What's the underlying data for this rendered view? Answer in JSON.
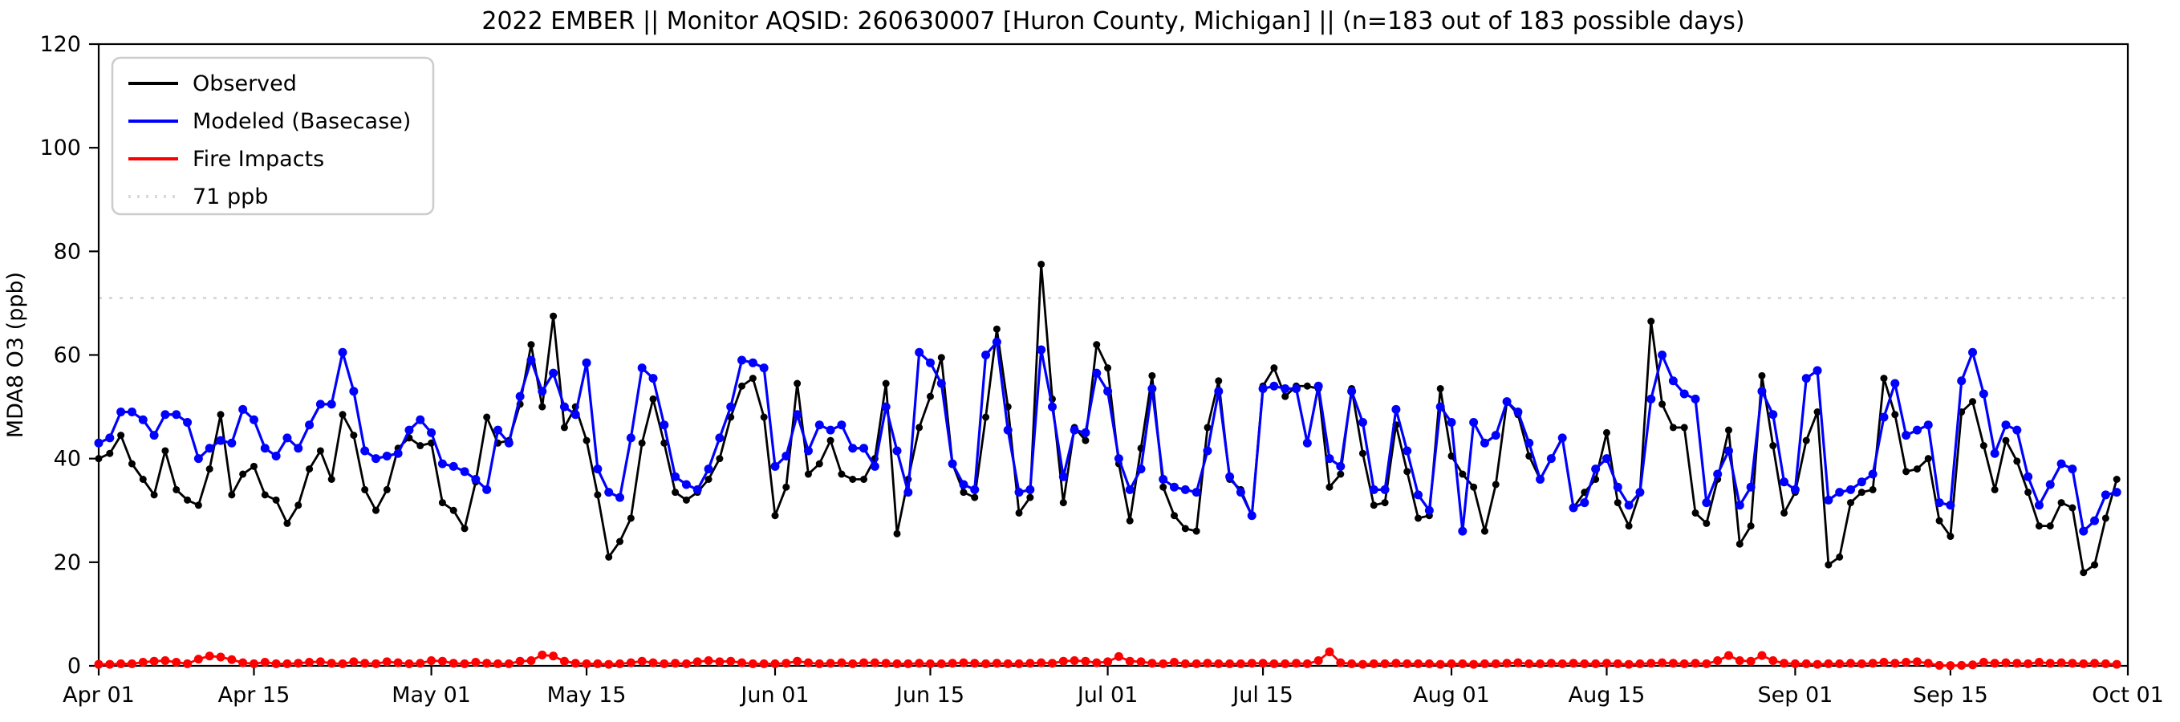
{
  "title": "2022 EMBER || Monitor AQSID: 260630007 [Huron County, Michigan] || (n=183 out of 183 possible days)",
  "ylabel": "MDA8 O3 (ppb)",
  "legend": {
    "items": [
      {
        "label": "Observed",
        "color": "#000000",
        "style": "solid"
      },
      {
        "label": "Modeled (Basecase)",
        "color": "#0000ff",
        "style": "solid"
      },
      {
        "label": "Fire Impacts",
        "color": "#ff0000",
        "style": "solid"
      },
      {
        "label": "71 ppb",
        "color": "#d9d9d9",
        "style": "dotted"
      }
    ]
  },
  "chart_data": {
    "type": "line",
    "title": "2022 EMBER || Monitor AQSID: 260630007 [Huron County, Michigan] || (n=183 out of 183 possible days)",
    "xlabel": "",
    "ylabel": "MDA8 O3 (ppb)",
    "ylim": [
      0,
      120
    ],
    "yticks": [
      0,
      20,
      40,
      60,
      80,
      100,
      120
    ],
    "x_start_date": "Apr 01",
    "x_end_date": "Oct 01",
    "n_days": 183,
    "grid": false,
    "legend_position": "upper-left",
    "ref_line": {
      "value": 71,
      "label": "71 ppb",
      "color": "#d9d9d9",
      "style": "dotted"
    },
    "x_ticks": [
      {
        "day": 0,
        "label": "Apr 01"
      },
      {
        "day": 14,
        "label": "Apr 15"
      },
      {
        "day": 30,
        "label": "May 01"
      },
      {
        "day": 44,
        "label": "May 15"
      },
      {
        "day": 61,
        "label": "Jun 01"
      },
      {
        "day": 75,
        "label": "Jun 15"
      },
      {
        "day": 91,
        "label": "Jul 01"
      },
      {
        "day": 105,
        "label": "Jul 15"
      },
      {
        "day": 122,
        "label": "Aug 01"
      },
      {
        "day": 136,
        "label": "Aug 15"
      },
      {
        "day": 153,
        "label": "Sep 01"
      },
      {
        "day": 167,
        "label": "Sep 15"
      },
      {
        "day": 183,
        "label": "Oct 01"
      }
    ],
    "series": [
      {
        "name": "Observed",
        "color": "#000000",
        "marker_radius": 4.5,
        "line_width": 2.8,
        "values": [
          40,
          41,
          44.5,
          39,
          36,
          33,
          41.5,
          34,
          32,
          31,
          38,
          48.5,
          33,
          37,
          38.5,
          33,
          32,
          27.5,
          31,
          38,
          41.5,
          36,
          48.5,
          44.5,
          34,
          30,
          34,
          42,
          44,
          42.5,
          43,
          31.5,
          30,
          26.5,
          35.5,
          48,
          43,
          43.5,
          50.5,
          62,
          50,
          67.5,
          46,
          50,
          43.5,
          33,
          21,
          24,
          28.5,
          43,
          51.5,
          43,
          33.5,
          32,
          33.5,
          36,
          40,
          48,
          54,
          55.5,
          48,
          29,
          34.5,
          54.5,
          37,
          39,
          43.5,
          37,
          36,
          36,
          40,
          54.5,
          25.5,
          36,
          46,
          52,
          59.5,
          39,
          33.5,
          32.5,
          48,
          65,
          50,
          29.5,
          32.5,
          77.5,
          51.5,
          31.5,
          46,
          43.5,
          62,
          57.5,
          39,
          28,
          42,
          56,
          34.5,
          29,
          26.5,
          26,
          46,
          55,
          36,
          34,
          29,
          54,
          57.5,
          52,
          54,
          54,
          53.5,
          34.5,
          37,
          53.5,
          41,
          31,
          31.5,
          46.5,
          37.5,
          28.5,
          29,
          53.5,
          40.5,
          37,
          34.5,
          26,
          35,
          51,
          48.5,
          40.5,
          36,
          40,
          44,
          30.5,
          33.5,
          36,
          45,
          31.5,
          27,
          33.5,
          66.5,
          50.5,
          46,
          46,
          29.5,
          27.5,
          36,
          45.5,
          23.5,
          27,
          56,
          42.5,
          29.5,
          33.5,
          43.5,
          49,
          19.5,
          21,
          31.5,
          33.5,
          34,
          55.5,
          48.5,
          37.5,
          38,
          40,
          28,
          25,
          49,
          51,
          42.5,
          34,
          43.5,
          39.5,
          33.5,
          27,
          27,
          31.5,
          30.5,
          18,
          19.5,
          28.5,
          36
        ]
      },
      {
        "name": "Modeled (Basecase)",
        "color": "#0000ff",
        "marker_radius": 5.5,
        "line_width": 3.2,
        "values": [
          43,
          44,
          49,
          49,
          47.5,
          44.5,
          48.5,
          48.5,
          47,
          40,
          42,
          43.5,
          43,
          49.5,
          47.5,
          42,
          40.5,
          44,
          42,
          46.5,
          50.5,
          50.5,
          60.5,
          53,
          41.5,
          40,
          40.5,
          41,
          45.5,
          47.5,
          45,
          39,
          38.5,
          37.5,
          36,
          34,
          45.5,
          43,
          52,
          59,
          53,
          56.5,
          50,
          48.5,
          58.5,
          38,
          33.5,
          32.5,
          44,
          57.5,
          55.5,
          46.5,
          36.5,
          35,
          34,
          38,
          44,
          50,
          59,
          58.5,
          57.5,
          38.5,
          40.5,
          48.5,
          41.5,
          46.5,
          45.5,
          46.5,
          42,
          42,
          38.5,
          50,
          41.5,
          33.5,
          60.5,
          58.5,
          54.5,
          39,
          35,
          34,
          60,
          62.5,
          45.5,
          33.5,
          34,
          61,
          50,
          36.5,
          45.5,
          45,
          56.5,
          53,
          40,
          34,
          38,
          53.5,
          36,
          34.5,
          34,
          33.5,
          41.5,
          53,
          36.5,
          33.5,
          29,
          53.5,
          54,
          53.5,
          53.5,
          43,
          54,
          40,
          38.5,
          53,
          47,
          34,
          34,
          49.5,
          41.5,
          33,
          30,
          50,
          47,
          26,
          47,
          43,
          44.5,
          51,
          49,
          43,
          36,
          40,
          44,
          30.5,
          31.5,
          38,
          40,
          34.5,
          31,
          33.5,
          51.5,
          60,
          55,
          52.5,
          51.5,
          31.5,
          37,
          41.5,
          31,
          34.5,
          53,
          48.5,
          35.5,
          34,
          55.5,
          57,
          32,
          33.5,
          34,
          35.5,
          37,
          48,
          54.5,
          44.5,
          45.5,
          46.5,
          31.5,
          31,
          55,
          60.5,
          52.5,
          41,
          46.5,
          45.5,
          36.5,
          31,
          35,
          39,
          38,
          26,
          28,
          33,
          33.5
        ]
      },
      {
        "name": "Fire Impacts",
        "color": "#ff0000",
        "marker_radius": 5.5,
        "line_width": 2.8,
        "values": [
          0.3,
          0.3,
          0.4,
          0.4,
          0.7,
          0.9,
          1.0,
          0.7,
          0.4,
          1.3,
          1.9,
          1.7,
          1.2,
          0.6,
          0.4,
          0.7,
          0.4,
          0.4,
          0.5,
          0.7,
          0.8,
          0.5,
          0.4,
          0.8,
          0.5,
          0.4,
          0.8,
          0.6,
          0.4,
          0.5,
          1.0,
          0.9,
          0.5,
          0.4,
          0.7,
          0.5,
          0.4,
          0.4,
          0.9,
          1.0,
          2.1,
          1.9,
          0.9,
          0.5,
          0.4,
          0.4,
          0.3,
          0.4,
          0.6,
          0.9,
          0.6,
          0.4,
          0.5,
          0.4,
          0.8,
          1.0,
          0.8,
          0.9,
          0.6,
          0.4,
          0.4,
          0.4,
          0.5,
          0.9,
          0.6,
          0.4,
          0.5,
          0.6,
          0.4,
          0.6,
          0.6,
          0.5,
          0.4,
          0.4,
          0.5,
          0.4,
          0.4,
          0.5,
          0.6,
          0.5,
          0.4,
          0.5,
          0.4,
          0.4,
          0.5,
          0.6,
          0.5,
          0.9,
          1.0,
          0.9,
          0.6,
          0.8,
          1.8,
          0.9,
          0.8,
          0.5,
          0.4,
          0.7,
          0.4,
          0.4,
          0.5,
          0.4,
          0.4,
          0.4,
          0.5,
          0.5,
          0.4,
          0.4,
          0.5,
          0.4,
          1.0,
          2.7,
          0.6,
          0.4,
          0.3,
          0.4,
          0.4,
          0.5,
          0.4,
          0.4,
          0.4,
          0.3,
          0.4,
          0.4,
          0.3,
          0.4,
          0.4,
          0.5,
          0.6,
          0.4,
          0.4,
          0.5,
          0.4,
          0.5,
          0.4,
          0.4,
          0.5,
          0.4,
          0.3,
          0.4,
          0.5,
          0.6,
          0.5,
          0.4,
          0.5,
          0.4,
          1.0,
          2.0,
          1.0,
          0.9,
          2.0,
          1.0,
          0.5,
          0.4,
          0.4,
          0.3,
          0.4,
          0.4,
          0.5,
          0.4,
          0.5,
          0.7,
          0.5,
          0.7,
          0.8,
          0.5,
          0.1,
          0.05,
          0.1,
          0.2,
          0.7,
          0.5,
          0.6,
          0.5,
          0.4,
          0.7,
          0.5,
          0.6,
          0.5,
          0.4,
          0.5,
          0.4,
          0.3
        ]
      }
    ]
  }
}
